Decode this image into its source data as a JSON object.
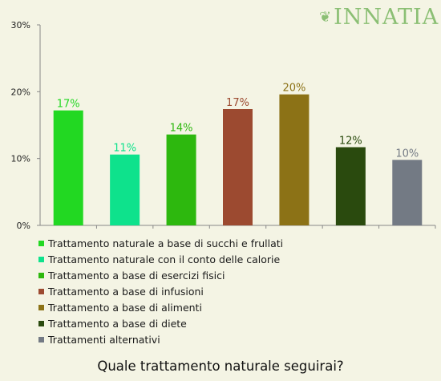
{
  "logo": {
    "text": "INNATIA"
  },
  "question": "Quale trattamento naturale seguirai?",
  "chart_data": {
    "type": "bar",
    "ylim": [
      0,
      30
    ],
    "yticks": [
      0,
      10,
      20,
      30
    ],
    "ytick_labels": [
      "0%",
      "10%",
      "20%",
      "30%"
    ],
    "grid": false,
    "legend_placement": "bottom",
    "categories": [
      "Trattamento naturale a base di succhi e frullati",
      "Trattamento naturale con il conto delle calorie",
      "Trattamento a base di esercizi fisici",
      "Trattamento a base di infusioni",
      "Trattamento a base di alimenti",
      "Trattamento a base di diete",
      "Trattamenti alternativi"
    ],
    "values": [
      17.2,
      10.6,
      13.6,
      17.4,
      19.6,
      11.7,
      9.8
    ],
    "data_labels": [
      "17%",
      "11%",
      "14%",
      "17%",
      "20%",
      "12%",
      "10%"
    ],
    "colors": [
      "#22d822",
      "#0ee28c",
      "#2db80e",
      "#9c4a30",
      "#8c7216",
      "#2a4a0e",
      "#737a84"
    ]
  }
}
